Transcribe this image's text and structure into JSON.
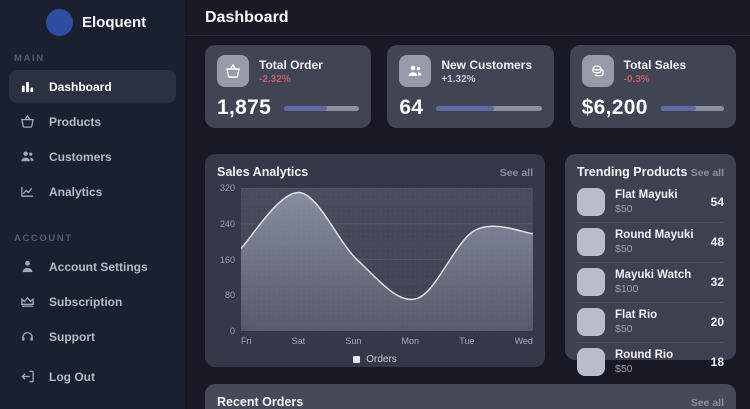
{
  "brand": {
    "name": "Eloquent",
    "logo_color": "#2e4da0"
  },
  "sidebar": {
    "sections": [
      {
        "label": "MAIN",
        "items": [
          {
            "icon": "bar-chart-icon",
            "label": "Dashboard",
            "active": true
          },
          {
            "icon": "basket-icon",
            "label": "Products",
            "active": false
          },
          {
            "icon": "users-icon",
            "label": "Customers",
            "active": false
          },
          {
            "icon": "line-chart-icon",
            "label": "Analytics",
            "active": false
          }
        ]
      },
      {
        "label": "ACCOUNT",
        "items": [
          {
            "icon": "user-icon",
            "label": "Account Settings",
            "active": false
          },
          {
            "icon": "crown-icon",
            "label": "Subscription",
            "active": false
          },
          {
            "icon": "headset-icon",
            "label": "Support",
            "active": false
          }
        ]
      }
    ],
    "logout": {
      "icon": "logout-icon",
      "label": "Log Out"
    }
  },
  "header": {
    "title": "Dashboard"
  },
  "stats": [
    {
      "icon": "basket-icon",
      "title": "Total Order",
      "delta": "-2.32%",
      "delta_color": "#c55f6b",
      "value": "1,875",
      "progress_pct": 57
    },
    {
      "icon": "users-icon",
      "title": "New Customers",
      "delta": "+1.32%",
      "delta_color": "#c3c7d1",
      "value": "64",
      "progress_pct": 55
    },
    {
      "icon": "coins-icon",
      "title": "Total Sales",
      "delta": "-0.3%",
      "delta_color": "#c55f6b",
      "value": "$6,200",
      "progress_pct": 55
    }
  ],
  "sales_analytics": {
    "title": "Sales Analytics",
    "see_all": "See all"
  },
  "chart_data": {
    "type": "area",
    "title": "Sales Analytics",
    "categories": [
      "Fri",
      "Sat",
      "Sun",
      "Mon",
      "Tue",
      "Wed"
    ],
    "series": [
      {
        "name": "Orders",
        "values": [
          185,
          310,
          158,
          72,
          225,
          218
        ]
      }
    ],
    "ylim": [
      0,
      320
    ],
    "yticks": [
      0,
      80,
      160,
      240,
      320
    ],
    "grid": true,
    "legend_position": "bottom",
    "line_color": "#dfe2e8",
    "area_top_color": "#878c9f",
    "area_bottom_color": "#555969"
  },
  "trending": {
    "title": "Trending Products",
    "see_all": "See all",
    "items": [
      {
        "name": "Flat Mayuki",
        "price": "$50",
        "count": "54"
      },
      {
        "name": "Round Mayuki",
        "price": "$50",
        "count": "48"
      },
      {
        "name": "Mayuki Watch",
        "price": "$100",
        "count": "32"
      },
      {
        "name": "Flat Rio",
        "price": "$50",
        "count": "20"
      },
      {
        "name": "Round Rio",
        "price": "$50",
        "count": "18"
      }
    ]
  },
  "recent_orders": {
    "title": "Recent Orders",
    "see_all": "See all"
  }
}
